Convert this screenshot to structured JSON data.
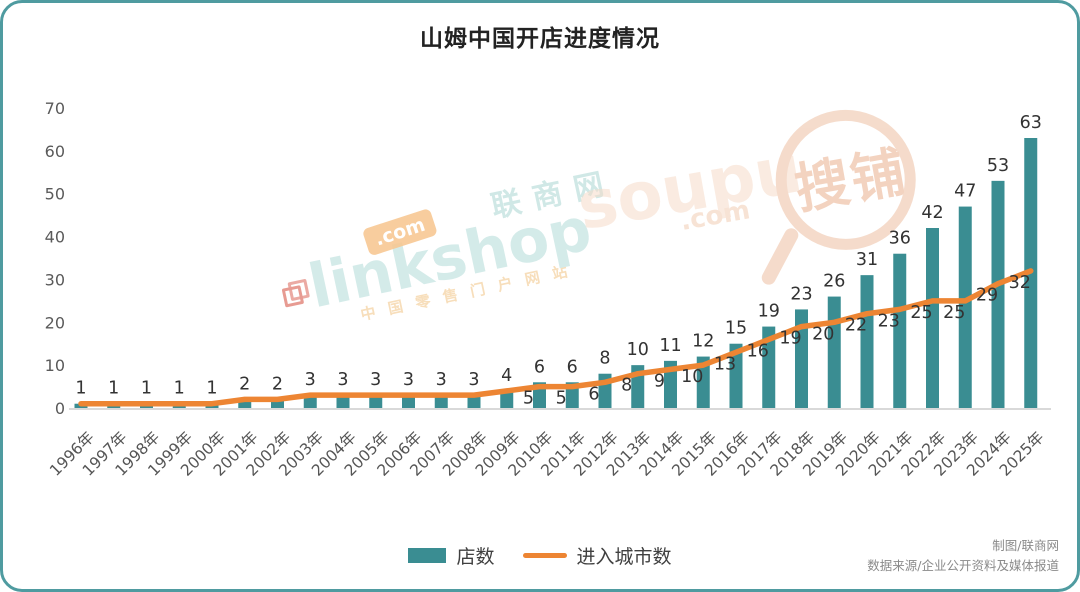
{
  "card": {
    "title": "山姆中国开店进度情况"
  },
  "chart_data": {
    "type": "bar",
    "title": "山姆中国开店进度情况",
    "categories": [
      "1996年",
      "1997年",
      "1998年",
      "1999年",
      "2000年",
      "2001年",
      "2002年",
      "2003年",
      "2004年",
      "2005年",
      "2006年",
      "2007年",
      "2008年",
      "2009年",
      "2010年",
      "2011年",
      "2012年",
      "2013年",
      "2014年",
      "2015年",
      "2016年",
      "2017年",
      "2018年",
      "2019年",
      "2020年",
      "2021年",
      "2022年",
      "2023年",
      "2024年",
      "2025年"
    ],
    "series": [
      {
        "name": "店数",
        "type": "bar",
        "color": "#3a8d92",
        "values": [
          1,
          1,
          1,
          1,
          1,
          2,
          2,
          3,
          3,
          3,
          3,
          3,
          3,
          4,
          6,
          6,
          8,
          10,
          11,
          12,
          15,
          19,
          23,
          26,
          31,
          36,
          42,
          47,
          53,
          63
        ]
      },
      {
        "name": "进入城市数",
        "type": "line",
        "color": "#ed8533",
        "values": [
          1,
          1,
          1,
          1,
          1,
          2,
          2,
          3,
          3,
          3,
          3,
          3,
          3,
          4,
          5,
          5,
          6,
          8,
          9,
          10,
          13,
          16,
          19,
          20,
          22,
          23,
          25,
          25,
          29,
          32
        ]
      }
    ],
    "ylim": [
      0,
      70
    ],
    "yticks": [
      0,
      10,
      20,
      30,
      40,
      50,
      60,
      70
    ],
    "grid": false,
    "legend_position": "bottom-center",
    "line_label_start_index": 14
  },
  "legend": {
    "bar_label": "店数",
    "line_label": "进入城市数"
  },
  "footer": {
    "credit": "制图/联商网",
    "source": "数据来源/企业公开资料及媒体报道"
  },
  "watermarks": {
    "linkshop": {
      "text": "linkshop",
      "domain": ".com",
      "cn": "联商网",
      "tagline": "中国零售门户网站"
    },
    "soupu": {
      "text": "soupu",
      "domain": ".com",
      "cn": "搜铺"
    }
  },
  "colors": {
    "bar": "#3a8d92",
    "line": "#ed8533",
    "border": "#4f9ba0",
    "value_label": "#333333",
    "axis_label": "#5a5a5a",
    "axis_line": "#d9d9d9"
  }
}
